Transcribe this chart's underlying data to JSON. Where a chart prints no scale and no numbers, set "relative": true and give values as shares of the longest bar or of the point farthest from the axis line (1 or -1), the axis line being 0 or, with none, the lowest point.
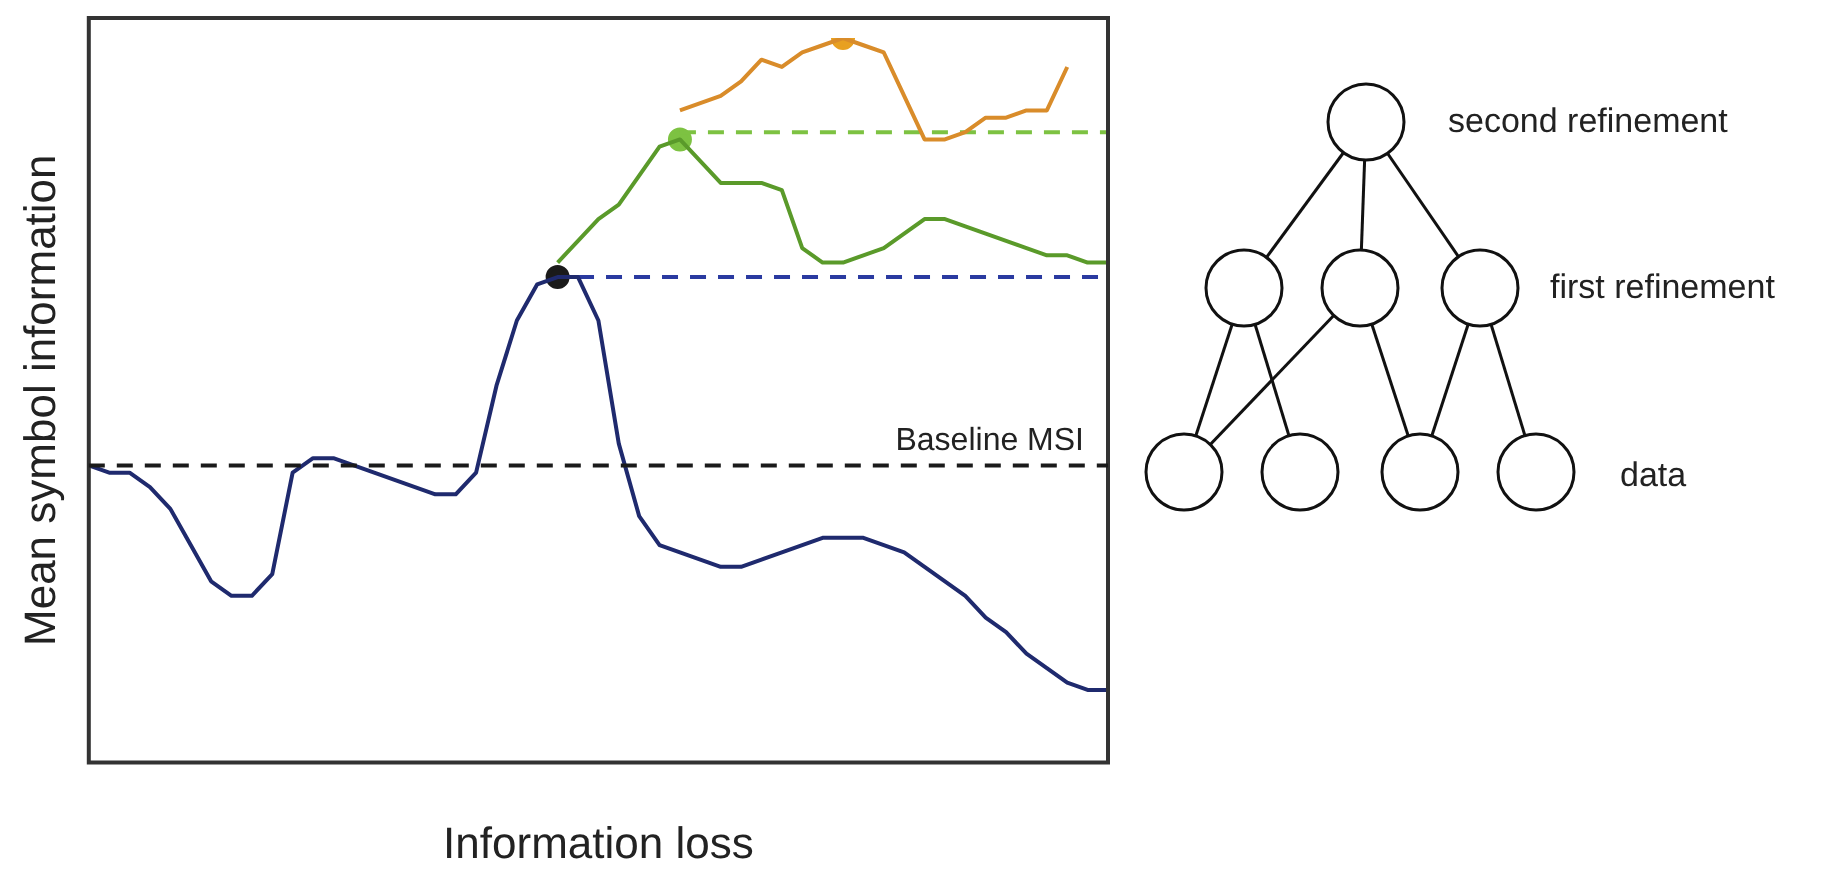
{
  "chart_data": {
    "type": "line",
    "relative": true,
    "xlabel": "Information loss",
    "ylabel": "Mean symbol information",
    "categories": [
      null,
      null,
      null,
      null,
      null,
      null,
      null,
      null,
      null,
      null,
      null,
      null,
      null,
      null,
      null,
      null,
      null,
      null,
      null,
      null,
      null,
      null,
      null,
      null,
      null,
      null,
      null,
      null,
      null,
      null,
      null,
      null,
      null,
      null,
      null,
      null,
      null,
      null,
      null,
      null,
      null,
      null,
      null,
      null,
      null,
      null,
      null,
      null,
      null,
      null,
      null
    ],
    "series": [
      {
        "color": "#1f2a6e",
        "values": [
          0.41,
          0.4,
          0.4,
          0.38,
          0.35,
          0.3,
          0.25,
          0.23,
          0.23,
          0.26,
          0.4,
          0.42,
          0.42,
          0.41,
          0.4,
          0.39,
          0.38,
          0.37,
          0.37,
          0.4,
          0.52,
          0.61,
          0.66,
          0.67,
          0.67,
          0.61,
          0.44,
          0.34,
          0.3,
          0.29,
          0.28,
          0.27,
          0.27,
          0.28,
          0.29,
          0.3,
          0.31,
          0.31,
          0.31,
          0.3,
          0.29,
          0.27,
          0.25,
          0.23,
          0.2,
          0.18,
          0.15,
          0.13,
          0.11,
          0.1,
          0.1
        ]
      },
      {
        "color": "#5a9a2a",
        "values": [
          null,
          null,
          null,
          null,
          null,
          null,
          null,
          null,
          null,
          null,
          null,
          null,
          null,
          null,
          null,
          null,
          null,
          null,
          null,
          null,
          null,
          null,
          null,
          0.69,
          0.72,
          0.75,
          0.77,
          0.81,
          0.85,
          0.86,
          0.83,
          0.8,
          0.8,
          0.8,
          0.79,
          0.71,
          0.69,
          0.69,
          0.7,
          0.71,
          0.73,
          0.75,
          0.75,
          0.74,
          0.73,
          0.72,
          0.71,
          0.7,
          0.7,
          0.69,
          0.69
        ]
      },
      {
        "color": "#d98c2a",
        "values": [
          null,
          null,
          null,
          null,
          null,
          null,
          null,
          null,
          null,
          null,
          null,
          null,
          null,
          null,
          null,
          null,
          null,
          null,
          null,
          null,
          null,
          null,
          null,
          null,
          null,
          null,
          null,
          null,
          null,
          0.9,
          0.91,
          0.92,
          0.94,
          0.97,
          0.96,
          0.98,
          0.99,
          1.0,
          0.99,
          0.98,
          0.92,
          0.86,
          0.86,
          0.87,
          0.89,
          0.89,
          0.9,
          0.9,
          0.96,
          null,
          null
        ]
      },
      {
        "color": "#2a3aa0",
        "line_style": "dashed",
        "values": [
          null,
          null,
          null,
          null,
          null,
          null,
          null,
          null,
          null,
          null,
          null,
          null,
          null,
          null,
          null,
          null,
          null,
          null,
          null,
          null,
          null,
          null,
          null,
          null,
          0.67,
          0.67,
          0.67,
          0.67,
          0.67,
          0.67,
          0.67,
          0.67,
          0.67,
          0.67,
          0.67,
          0.67,
          0.67,
          0.67,
          0.67,
          0.67,
          0.67,
          0.67,
          0.67,
          0.67,
          0.67,
          0.67,
          0.67,
          0.67,
          0.67,
          0.67,
          0.67
        ]
      },
      {
        "color": "#7dc242",
        "line_style": "dashed",
        "values": [
          null,
          null,
          null,
          null,
          null,
          null,
          null,
          null,
          null,
          null,
          null,
          null,
          null,
          null,
          null,
          null,
          null,
          null,
          null,
          null,
          null,
          null,
          null,
          null,
          null,
          null,
          null,
          null,
          null,
          0.87,
          0.87,
          0.87,
          0.87,
          0.87,
          0.87,
          0.87,
          0.87,
          0.87,
          0.87,
          0.87,
          0.87,
          0.87,
          0.87,
          0.87,
          0.87,
          0.87,
          0.87,
          0.87,
          0.87,
          0.87,
          0.87
        ]
      },
      {
        "marker": "circle",
        "color": "#1a1a1a",
        "values": [
          null,
          null,
          null,
          null,
          null,
          null,
          null,
          null,
          null,
          null,
          null,
          null,
          null,
          null,
          null,
          null,
          null,
          null,
          null,
          null,
          null,
          null,
          null,
          0.67,
          null,
          null,
          null,
          null,
          null,
          null,
          null,
          null,
          null,
          null,
          null,
          null,
          null,
          null,
          null,
          null,
          null,
          null,
          null,
          null,
          null,
          null,
          null,
          null,
          null,
          null,
          null
        ]
      },
      {
        "marker": "circle",
        "color": "#7dc242",
        "values": [
          null,
          null,
          null,
          null,
          null,
          null,
          null,
          null,
          null,
          null,
          null,
          null,
          null,
          null,
          null,
          null,
          null,
          null,
          null,
          null,
          null,
          null,
          null,
          null,
          null,
          null,
          null,
          null,
          null,
          0.86,
          null,
          null,
          null,
          null,
          null,
          null,
          null,
          null,
          null,
          null,
          null,
          null,
          null,
          null,
          null,
          null,
          null,
          null,
          null,
          null,
          null
        ]
      },
      {
        "marker": "circle",
        "color": "#e8a020",
        "values": [
          null,
          null,
          null,
          null,
          null,
          null,
          null,
          null,
          null,
          null,
          null,
          null,
          null,
          null,
          null,
          null,
          null,
          null,
          null,
          null,
          null,
          null,
          null,
          null,
          null,
          null,
          null,
          null,
          null,
          null,
          null,
          null,
          null,
          null,
          null,
          null,
          null,
          1.0,
          null,
          null,
          null,
          null,
          null,
          null,
          null,
          null,
          null,
          null,
          null,
          null,
          null
        ]
      }
    ],
    "ref_lines": [
      {
        "axis": "y",
        "value": 0.41,
        "label": "Baseline MSI",
        "color": "#1a1a1a",
        "line_style": "dashed"
      }
    ],
    "annotations": [
      "second refinement",
      "first refinement",
      "data"
    ],
    "grid": false,
    "legend": false
  }
}
